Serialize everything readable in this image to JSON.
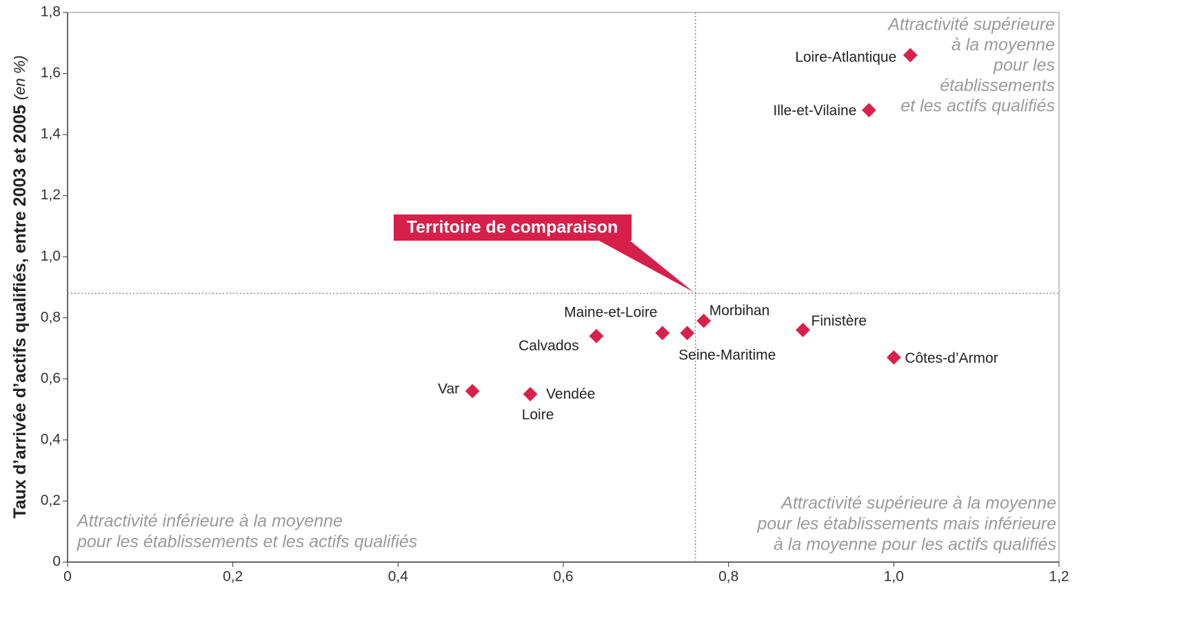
{
  "chart_data": {
    "type": "scatter",
    "y_label": "Taux d’arrivée d’actifs qualifiés, entre 2003 et 2005",
    "y_label_unit": "(en %)",
    "series": [
      {
        "color": "#d9204a",
        "labels": [
          "Loire-Atlantique",
          "Ille-et-Vilaine",
          "Morbihan",
          "Finistère",
          "Côtes-d’Armor",
          "Maine-et-Loire",
          "Seine-Maritime",
          "Calvados",
          "Var",
          "Vendée",
          "Loire"
        ],
        "x": [
          1.02,
          0.97,
          0.77,
          0.89,
          1.0,
          0.72,
          0.75,
          0.64,
          0.49,
          0.56,
          0.56
        ],
        "values": [
          1.66,
          1.48,
          0.79,
          0.76,
          0.67,
          0.75,
          0.75,
          0.74,
          0.56,
          0.55,
          0.55
        ]
      }
    ],
    "reference": {
      "x": 0.76,
      "y": 0.88,
      "label": "Territoire de comparaison",
      "color": "#d71f4b"
    },
    "annotations": {
      "upper_right": [
        "Attractivité supérieure",
        "à la moyenne",
        "pour les",
        "établissements",
        "et les actifs qualifiés"
      ],
      "lower_left": [
        "Attractivité inférieure à la moyenne",
        "pour les établissements et les actifs qualifiés"
      ],
      "lower_right": [
        "Attractivité supérieure à la moyenne",
        "pour les établissements mais inférieure",
        "à la moyenne pour les actifs qualifiés"
      ]
    },
    "xlim": [
      0,
      1.2
    ],
    "xticks": [
      0,
      {
        "value": 0.2,
        "label": "0,2"
      },
      {
        "value": 0.4,
        "label": "0,4"
      },
      {
        "value": 0.6,
        "label": "0,6"
      },
      {
        "value": 0.8,
        "label": "0,8"
      },
      {
        "value": 1.0,
        "label": "1,0"
      },
      {
        "value": 1.2,
        "label": "1,2"
      }
    ],
    "ylim": [
      0,
      1.8
    ],
    "yticks": [
      0,
      {
        "value": 0.2,
        "label": "0,2"
      },
      {
        "value": 0.4,
        "label": "0,4"
      },
      {
        "value": 0.6,
        "label": "0,6"
      },
      {
        "value": 0.8,
        "label": "0,8"
      },
      {
        "value": 1.0,
        "label": "1,0"
      },
      {
        "value": 1.2,
        "label": "1,2"
      },
      {
        "value": 1.4,
        "label": "1,4"
      },
      {
        "value": 1.6,
        "label": "1,6"
      },
      {
        "value": 1.8,
        "label": "1,8"
      }
    ]
  }
}
